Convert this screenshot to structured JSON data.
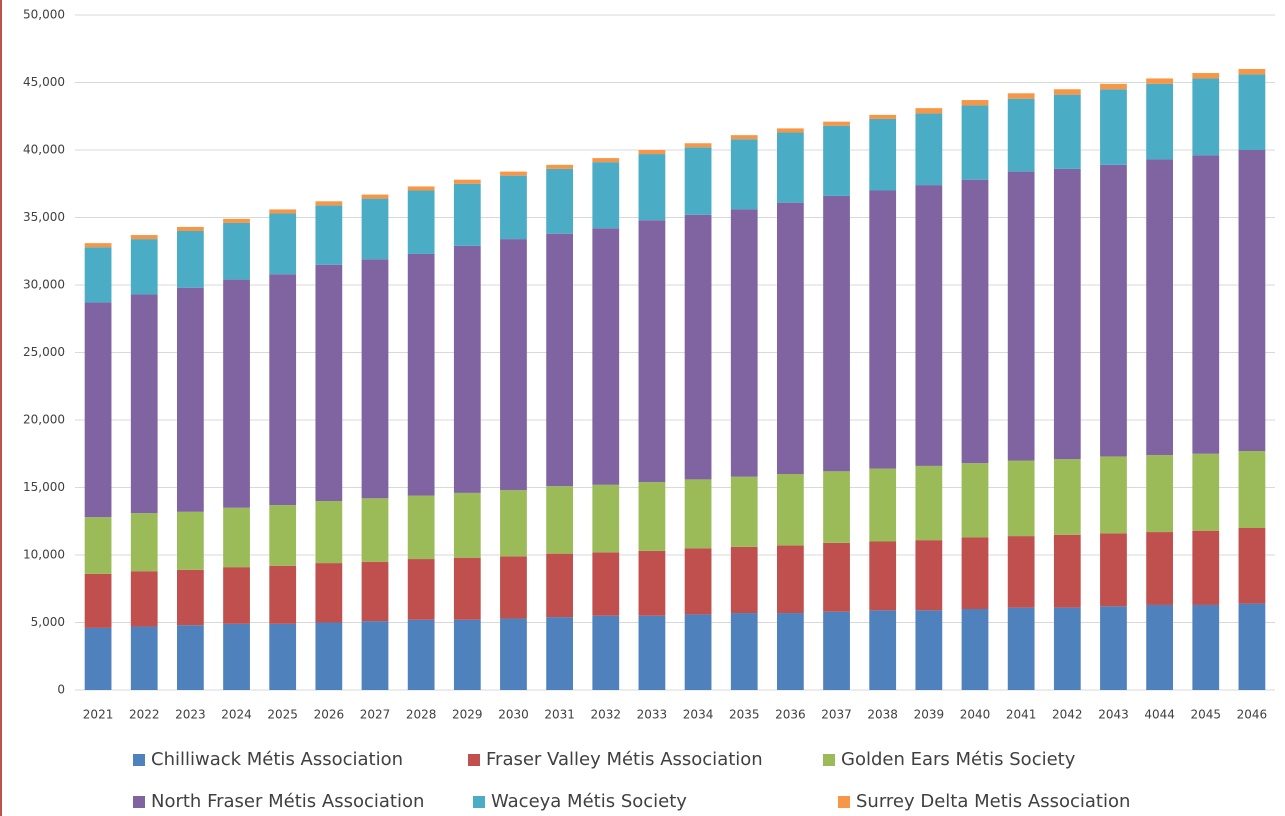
{
  "chart_data": {
    "type": "stacked_bar",
    "categories": [
      "2021",
      "2022",
      "2023",
      "2024",
      "2025",
      "2026",
      "2027",
      "2028",
      "2029",
      "2030",
      "2031",
      "2032",
      "2033",
      "2034",
      "2035",
      "2036",
      "2037",
      "2038",
      "2039",
      "2040",
      "2041",
      "2042",
      "2043",
      "4044",
      "2045",
      "2046"
    ],
    "series": [
      {
        "name": "Chilliwack Métis Association",
        "color": "#4f81bd",
        "values": [
          4600,
          4700,
          4800,
          4900,
          4900,
          5000,
          5100,
          5200,
          5200,
          5300,
          5400,
          5500,
          5500,
          5600,
          5700,
          5700,
          5800,
          5900,
          5900,
          6000,
          6100,
          6100,
          6200,
          6300,
          6300,
          6400
        ]
      },
      {
        "name": "Fraser Valley Métis Association",
        "color": "#c0504d",
        "values": [
          4000,
          4100,
          4100,
          4200,
          4300,
          4400,
          4400,
          4500,
          4600,
          4600,
          4700,
          4700,
          4800,
          4900,
          4900,
          5000,
          5100,
          5100,
          5200,
          5300,
          5300,
          5400,
          5400,
          5400,
          5500,
          5600
        ]
      },
      {
        "name": "Golden Ears Métis Society",
        "color": "#9bbb59",
        "values": [
          4200,
          4300,
          4300,
          4400,
          4500,
          4600,
          4700,
          4700,
          4800,
          4900,
          5000,
          5000,
          5100,
          5100,
          5200,
          5300,
          5300,
          5400,
          5500,
          5500,
          5600,
          5600,
          5700,
          5700,
          5700,
          5700
        ]
      },
      {
        "name": "North Fraser Métis Association",
        "color": "#8064a2",
        "values": [
          15900,
          16200,
          16600,
          16900,
          17100,
          17500,
          17700,
          17900,
          18300,
          18600,
          18700,
          19000,
          19400,
          19600,
          19800,
          20100,
          20400,
          20600,
          20800,
          21000,
          21400,
          21500,
          21600,
          21900,
          22100,
          22300
        ]
      },
      {
        "name": "Waceya Métis Society",
        "color": "#4bacc6",
        "values": [
          4100,
          4100,
          4200,
          4200,
          4500,
          4400,
          4500,
          4700,
          4600,
          4700,
          4800,
          4900,
          4900,
          5000,
          5200,
          5200,
          5200,
          5300,
          5300,
          5500,
          5400,
          5500,
          5600,
          5600,
          5700,
          5600
        ]
      },
      {
        "name": "Surrey Delta Metis Association",
        "color": "#f79646",
        "values": [
          300,
          300,
          300,
          300,
          300,
          300,
          300,
          300,
          300,
          300,
          300,
          300,
          300,
          300,
          300,
          300,
          300,
          300,
          400,
          400,
          400,
          400,
          400,
          400,
          400,
          400
        ]
      }
    ],
    "ylim": [
      0,
      50000
    ],
    "yticks": [
      0,
      {
        "value": 5000,
        "label": "5,000"
      },
      {
        "value": 10000,
        "label": "10,000"
      },
      {
        "value": 15000,
        "label": "15,000"
      },
      {
        "value": 20000,
        "label": "20,000"
      },
      {
        "value": 25000,
        "label": "25,000"
      },
      {
        "value": 30000,
        "label": "30,000"
      },
      {
        "value": 35000,
        "label": "35,000"
      },
      {
        "value": 40000,
        "label": "40,000"
      },
      {
        "value": 45000,
        "label": "45,000"
      },
      {
        "value": 50000,
        "label": "50,000"
      }
    ],
    "grid": true
  }
}
